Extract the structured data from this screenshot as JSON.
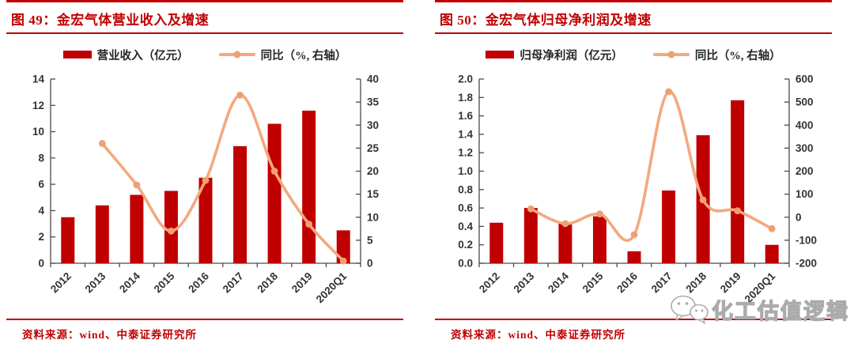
{
  "colors": {
    "red": "#C00000",
    "bar": "#C00000",
    "line": "#F4A87E",
    "marker": "#F09F73",
    "spine": "#4A4A4A",
    "axis_text": "#333333"
  },
  "watermark": {
    "label": "化工估值逻辑",
    "icon": "wechat-icon"
  },
  "panels": [
    {
      "title": "图 49：金宏气体营业收入及增速",
      "legend_bar": "营业收入（亿元）",
      "legend_line": "同比（%, 右轴）",
      "source": "资料来源：wind、中泰证券研究所"
    },
    {
      "title": "图 50：金宏气体归母净利润及增速",
      "legend_bar": "归母净利润（亿元）",
      "legend_line": "同比（%, 右轴）",
      "source": "资料来源：wind、中泰证券研究所"
    }
  ],
  "chart_data": [
    {
      "type": "bar",
      "title": "金宏气体营业收入及增速",
      "categories": [
        "2012",
        "2013",
        "2014",
        "2015",
        "2016",
        "2017",
        "2018",
        "2019",
        "2020Q1"
      ],
      "series": [
        {
          "name": "营业收入（亿元）",
          "type": "bar",
          "axis": "left",
          "values": [
            3.5,
            4.4,
            5.2,
            5.5,
            6.5,
            8.9,
            10.6,
            11.6,
            2.5
          ]
        },
        {
          "name": "同比（%, 右轴）",
          "type": "line",
          "axis": "right",
          "values": [
            null,
            26,
            17,
            7,
            18,
            36.5,
            20,
            8.5,
            0.5
          ]
        }
      ],
      "left_axis": {
        "min": 0,
        "max": 14,
        "step": 2,
        "decimals": 0
      },
      "right_axis": {
        "min": 0,
        "max": 40,
        "step": 5,
        "decimals": 0
      },
      "grid": false,
      "legend_position": "top"
    },
    {
      "type": "bar",
      "title": "金宏气体归母净利润及增速",
      "categories": [
        "2012",
        "2013",
        "2014",
        "2015",
        "2016",
        "2017",
        "2018",
        "2019",
        "2020Q1"
      ],
      "series": [
        {
          "name": "归母净利润（亿元）",
          "type": "bar",
          "axis": "left",
          "values": [
            0.44,
            0.6,
            0.43,
            0.51,
            0.13,
            0.79,
            1.39,
            1.77,
            0.2
          ]
        },
        {
          "name": "同比（%, 右轴）",
          "type": "line",
          "axis": "right",
          "values": [
            null,
            36,
            -28,
            14,
            -76,
            545,
            75,
            28,
            -50
          ]
        }
      ],
      "left_axis": {
        "min": 0,
        "max": 2,
        "step": 0.2,
        "decimals": 1
      },
      "right_axis": {
        "min": -200,
        "max": 600,
        "step": 100,
        "decimals": 0
      },
      "grid": false,
      "legend_position": "top"
    }
  ]
}
